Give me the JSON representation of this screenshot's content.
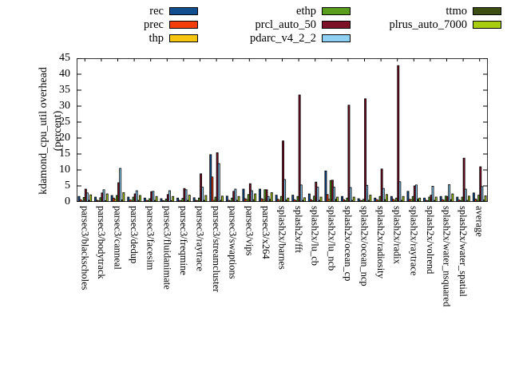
{
  "figure": {
    "ylabel_line1": "kdamond_cpu_util overhead",
    "ylabel_line2": "(percent)"
  },
  "chart_data": {
    "type": "bar",
    "title": "",
    "xlabel": "",
    "ylabel": "kdamond_cpu_util overhead (percent)",
    "ylim": [
      0,
      45
    ],
    "yticks": [
      0,
      5,
      10,
      15,
      20,
      25,
      30,
      35,
      40,
      45
    ],
    "grid": false,
    "legend_position": "top",
    "background_color": "#ffffff",
    "axis_color": "#000000",
    "categories": [
      "parsec3/blackscholes",
      "parsec3/bodytrack",
      "parsec3/canneal",
      "parsec3/dedup",
      "parsec3/facesim",
      "parsec3/fluidanimate",
      "parsec3/freqmine",
      "parsec3/raytrace",
      "parsec3/streamcluster",
      "parsec3/swaptions",
      "parsec3/vips",
      "parsec3/x264",
      "splash2x/barnes",
      "splash2x/fft",
      "splash2x/lu_cb",
      "splash2x/lu_ncb",
      "splash2x/ocean_cp",
      "splash2x/ocean_ncp",
      "splash2x/radiosity",
      "splash2x/radix",
      "splash2x/raytrace",
      "splash2x/volrend",
      "splash2x/water_nsquared",
      "splash2x/water_spatial",
      "average"
    ],
    "series": [
      {
        "name": "rec",
        "color": "#114e8e",
        "values": [
          1.7,
          1.5,
          2.0,
          1.5,
          1.2,
          1.0,
          1.2,
          1.3,
          14.8,
          1.8,
          4.0,
          4.0,
          2.1,
          2.1,
          2.5,
          9.7,
          1.7,
          1.0,
          1.2,
          1.7,
          3.3,
          1.2,
          1.7,
          1.5,
          2.8
        ]
      },
      {
        "name": "prec",
        "color": "#f53d0c",
        "values": [
          0.7,
          0.5,
          1.2,
          0.6,
          0.5,
          0.4,
          0.5,
          0.5,
          7.8,
          0.5,
          1.0,
          1.0,
          0.8,
          0.7,
          0.7,
          2.3,
          0.7,
          0.5,
          0.7,
          0.8,
          0.8,
          0.5,
          0.7,
          0.6,
          0.9
        ]
      },
      {
        "name": "thp",
        "color": "#f8c510",
        "values": [
          0.3,
          0.3,
          0.8,
          0.5,
          0.4,
          0.3,
          0.4,
          0.4,
          0.5,
          0.3,
          0.7,
          0.7,
          0.5,
          0.4,
          0.4,
          0.8,
          0.4,
          0.4,
          0.5,
          0.5,
          0.7,
          0.4,
          0.5,
          0.4,
          0.5
        ]
      },
      {
        "name": "ethp",
        "color": "#5b9e1d",
        "values": [
          1.4,
          1.3,
          2.0,
          1.5,
          1.0,
          0.9,
          1.1,
          1.2,
          1.5,
          1.2,
          2.3,
          3.8,
          1.7,
          1.7,
          1.8,
          6.7,
          1.2,
          0.8,
          1.7,
          1.2,
          1.7,
          1.5,
          1.8,
          1.5,
          2.1
        ]
      },
      {
        "name": "prcl_auto_50",
        "color": "#7d1128",
        "values": [
          4.0,
          2.8,
          6.0,
          2.5,
          3.2,
          2.3,
          4.2,
          8.8,
          15.4,
          3.3,
          5.7,
          3.8,
          19.1,
          33.5,
          6.2,
          6.8,
          30.3,
          32.3,
          10.3,
          42.7,
          5.0,
          2.1,
          1.7,
          13.7,
          11.0
        ]
      },
      {
        "name": "pdarc_v4_2_2",
        "color": "#8ed1f5",
        "values": [
          2.8,
          3.8,
          10.5,
          3.5,
          3.3,
          3.5,
          3.8,
          4.6,
          12.0,
          4.0,
          3.5,
          1.7,
          7.0,
          5.3,
          4.6,
          4.6,
          4.5,
          5.2,
          4.2,
          6.3,
          5.3,
          4.9,
          5.4,
          4.0,
          4.8
        ]
      },
      {
        "name": "ttmo",
        "color": "#3c4e12",
        "values": [
          0.5,
          0.4,
          0.6,
          0.5,
          0.5,
          0.4,
          0.5,
          0.5,
          0.5,
          0.5,
          0.7,
          0.8,
          0.6,
          0.5,
          0.5,
          0.8,
          0.5,
          0.5,
          0.7,
          0.5,
          0.8,
          0.5,
          0.7,
          0.5,
          0.6
        ]
      },
      {
        "name": "plrus_auto_7000",
        "color": "#a8cc10",
        "values": [
          2.2,
          2.5,
          2.9,
          2.0,
          1.7,
          1.7,
          2.1,
          2.0,
          1.8,
          1.7,
          2.5,
          2.9,
          1.2,
          1.3,
          1.5,
          1.5,
          1.5,
          2.1,
          2.3,
          1.7,
          1.2,
          1.5,
          2.5,
          1.8,
          1.9
        ]
      }
    ]
  }
}
